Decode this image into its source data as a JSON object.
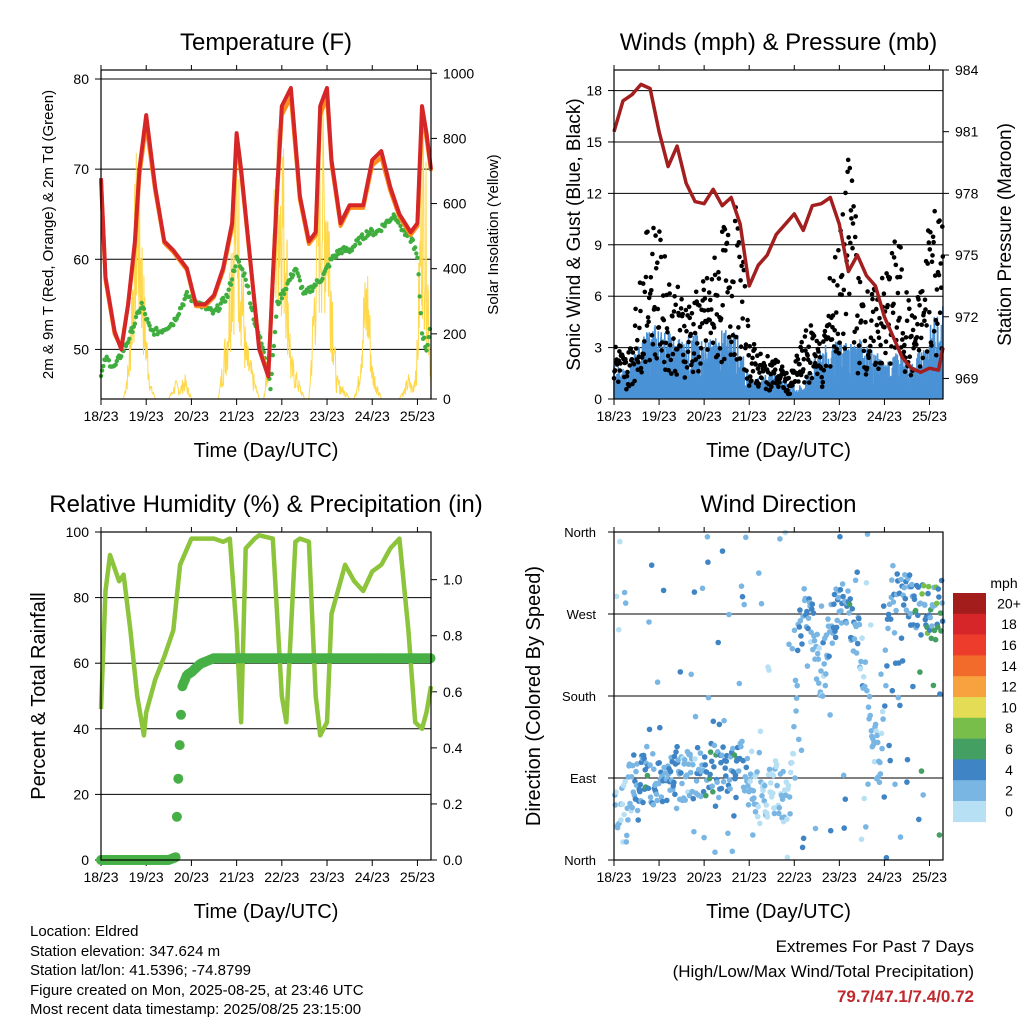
{
  "x_ticks": [
    "18/23",
    "19/23",
    "20/23",
    "21/23",
    "22/23",
    "23/23",
    "24/23",
    "25/23"
  ],
  "colors": {
    "temp_2m": "#d62728",
    "temp_9m": "#ff8c1a",
    "dewpoint": "#3fae3f",
    "solar": "#ffd84a",
    "pressure": "#a31f1f",
    "wind": "#4b92d6",
    "gust": "#000000",
    "rh": "#8cc43c",
    "precip": "#46b046",
    "value_highlight": "#c0282d"
  },
  "legend": {
    "title": "mph",
    "labels": [
      "20+",
      "18",
      "16",
      "14",
      "12",
      "10",
      "8",
      "6",
      "4",
      "2",
      "0"
    ],
    "colors": [
      "#a31d1d",
      "#d6262a",
      "#ee3c2c",
      "#f26b2a",
      "#f7a23e",
      "#e4dc55",
      "#78be4a",
      "#43a062",
      "#3f84c4",
      "#7ab6e4",
      "#b8e0f4"
    ]
  },
  "chart_data": [
    {
      "type": "line",
      "title": "Temperature (F)",
      "xlabel": "Time (Day/UTC)",
      "ylabel": "2m & 9m T (Red, Orange) & 2m Td (Green)",
      "y2label": "Solar Insolation (Yellow)",
      "x_tick_labels": [
        "18/23",
        "19/23",
        "20/23",
        "21/23",
        "22/23",
        "23/23",
        "24/23",
        "25/23"
      ],
      "ylim": [
        44.5,
        81
      ],
      "yticks": [
        50,
        60,
        70,
        80
      ],
      "y2lim": [
        0,
        1010
      ],
      "y2ticks": [
        0,
        200,
        400,
        600,
        800,
        1000
      ],
      "grid": "horizontal",
      "series": [
        {
          "name": "2m T",
          "x": [
            0,
            0.1,
            0.3,
            0.45,
            0.6,
            0.75,
            0.85,
            1.0,
            1.2,
            1.4,
            1.6,
            1.9,
            2.1,
            2.3,
            2.5,
            2.7,
            2.9,
            3.0,
            3.1,
            3.3,
            3.5,
            3.7,
            3.8,
            3.9,
            4.0,
            4.2,
            4.4,
            4.6,
            4.75,
            4.85,
            5.0,
            5.1,
            5.3,
            5.5,
            5.8,
            6.0,
            6.2,
            6.4,
            6.6,
            6.85,
            7.0,
            7.1,
            7.2,
            7.3
          ],
          "values": [
            69,
            58,
            52,
            50,
            55,
            62,
            70,
            76,
            68,
            62,
            61,
            59,
            55,
            55,
            56,
            59,
            64,
            74,
            70,
            60,
            50,
            47,
            58,
            68,
            77,
            79,
            67,
            62,
            63,
            77,
            79,
            71,
            64,
            66,
            66,
            71,
            72,
            68,
            65,
            63,
            64,
            77,
            74,
            70
          ]
        },
        {
          "name": "9m T",
          "x": [
            0,
            0.1,
            0.3,
            0.45,
            0.6,
            0.75,
            0.85,
            1.0,
            1.2,
            1.4,
            1.6,
            1.9,
            2.1,
            2.3,
            2.5,
            2.7,
            2.9,
            3.0,
            3.1,
            3.3,
            3.5,
            3.7,
            3.8,
            3.9,
            4.0,
            4.2,
            4.4,
            4.6,
            4.75,
            4.85,
            5.0,
            5.1,
            5.3,
            5.5,
            5.8,
            6.0,
            6.2,
            6.4,
            6.6,
            6.85,
            7.0,
            7.1,
            7.2,
            7.3
          ],
          "values": [
            68.7,
            57.7,
            51.7,
            50.2,
            55,
            61.5,
            69.3,
            75,
            67.6,
            61.8,
            60.8,
            58.8,
            54.8,
            54.8,
            55.8,
            58.7,
            63.5,
            73,
            69.5,
            59.8,
            50.2,
            47.3,
            57.7,
            67.5,
            76,
            78,
            66.6,
            61.7,
            62.7,
            76,
            78,
            70.6,
            63.7,
            65.7,
            65.7,
            70.4,
            71.3,
            67.6,
            64.7,
            62.7,
            63.7,
            76,
            73.4,
            69.8
          ]
        },
        {
          "name": "2m Td",
          "x": [
            0,
            0.1,
            0.3,
            0.6,
            0.9,
            1.1,
            1.3,
            1.6,
            1.9,
            2.2,
            2.5,
            2.8,
            3.0,
            3.2,
            3.4,
            3.6,
            3.75,
            3.9,
            4.1,
            4.3,
            4.5,
            4.7,
            4.9,
            5.1,
            5.3,
            5.5,
            5.7,
            5.9,
            6.1,
            6.3,
            6.5,
            6.7,
            6.9,
            7.0,
            7.1,
            7.2,
            7.3
          ],
          "values": [
            47,
            49,
            48,
            51,
            55,
            52,
            52,
            53,
            56,
            55,
            54,
            56,
            60,
            58,
            53,
            50,
            46,
            55,
            57,
            59,
            56,
            57,
            58,
            60,
            61,
            61,
            62,
            63,
            63,
            64,
            65,
            63,
            62,
            60,
            52,
            50,
            53
          ]
        },
        {
          "name": "Solar",
          "axis": "y2",
          "x": [
            0,
            0.3,
            0.5,
            0.62,
            0.7,
            0.8,
            0.9,
            0.95,
            1.0,
            1.1,
            1.2,
            1.5,
            1.65,
            1.75,
            1.85,
            2.0,
            2.4,
            2.6,
            2.8,
            2.9,
            3.0,
            3.1,
            3.2,
            3.5,
            3.6,
            3.7,
            3.8,
            3.9,
            4.0,
            4.1,
            4.2,
            4.5,
            4.6,
            4.7,
            4.8,
            4.9,
            5.0,
            5.1,
            5.2,
            5.5,
            5.6,
            5.7,
            5.8,
            5.9,
            6.0,
            6.1,
            6.2,
            6.5,
            6.6,
            6.7,
            6.8,
            6.9,
            7.0,
            7.1,
            7.2,
            7.3
          ],
          "values": [
            0,
            0,
            0,
            150,
            500,
            850,
            600,
            400,
            250,
            50,
            0,
            0,
            60,
            40,
            80,
            0,
            0,
            0,
            300,
            700,
            880,
            600,
            200,
            0,
            0,
            150,
            600,
            900,
            950,
            650,
            150,
            0,
            0,
            350,
            800,
            950,
            880,
            500,
            80,
            0,
            0,
            80,
            350,
            450,
            120,
            60,
            0,
            0,
            0,
            30,
            80,
            40,
            200,
            980,
            700,
            100
          ]
        }
      ]
    },
    {
      "type": "scatter",
      "title": "Winds (mph) & Pressure (mb)",
      "xlabel": "Time (Day/UTC)",
      "ylabel": "Sonic Wind & Gust (Blue, Black)",
      "y2label": "Station Pressure (Maroon)",
      "x_tick_labels": [
        "18/23",
        "19/23",
        "20/23",
        "21/23",
        "22/23",
        "23/23",
        "24/23",
        "25/23"
      ],
      "ylim": [
        0,
        19.2
      ],
      "yticks": [
        0,
        3,
        6,
        9,
        12,
        15,
        18
      ],
      "y2lim": [
        968,
        984
      ],
      "y2ticks": [
        969,
        972,
        975,
        978,
        981,
        984
      ],
      "grid": "horizontal",
      "series": [
        {
          "name": "Wind",
          "x": [
            0,
            0.3,
            0.6,
            0.9,
            1.2,
            1.5,
            1.8,
            2.1,
            2.4,
            2.7,
            2.85,
            3.0,
            3.3,
            3.6,
            3.9,
            4.2,
            4.5,
            4.8,
            5.1,
            5.4,
            5.7,
            6.0,
            6.3,
            6.6,
            6.9,
            7.2
          ],
          "values": [
            1.5,
            1.2,
            2.5,
            3.2,
            2.8,
            2.6,
            2.8,
            2.5,
            2.9,
            3.0,
            2.0,
            0.8,
            1.0,
            1.2,
            0.5,
            0.6,
            2.0,
            2.4,
            2.5,
            2.6,
            2.3,
            1.5,
            2.0,
            1.5,
            2.5,
            4.0
          ]
        },
        {
          "name": "Gust",
          "x": [
            0,
            0.3,
            0.6,
            0.8,
            1.0,
            1.2,
            1.5,
            1.8,
            2.1,
            2.4,
            2.7,
            2.85,
            3.0,
            3.3,
            3.6,
            3.9,
            4.2,
            4.5,
            4.6,
            4.8,
            5.1,
            5.3,
            5.4,
            5.7,
            6.0,
            6.3,
            6.6,
            6.9,
            7.0,
            7.2
          ],
          "values": [
            3,
            2,
            6,
            9,
            8,
            6,
            5,
            5,
            6,
            8,
            9,
            7,
            3,
            2,
            2,
            1,
            3,
            4,
            2,
            6,
            9,
            14,
            6,
            5,
            6,
            8,
            4,
            6,
            11,
            9
          ]
        },
        {
          "name": "Pressure",
          "axis": "y2",
          "x": [
            0,
            0.2,
            0.4,
            0.6,
            0.8,
            1.0,
            1.2,
            1.4,
            1.6,
            1.8,
            2.0,
            2.2,
            2.4,
            2.6,
            2.8,
            3.0,
            3.2,
            3.4,
            3.6,
            3.8,
            4.0,
            4.2,
            4.4,
            4.6,
            4.8,
            5.0,
            5.2,
            5.4,
            5.6,
            5.8,
            6.0,
            6.2,
            6.4,
            6.6,
            6.8,
            7.0,
            7.2,
            7.3
          ],
          "values": [
            981,
            982.5,
            982.8,
            983.3,
            983.1,
            981,
            979.3,
            980.3,
            978.5,
            977.6,
            977.5,
            978.2,
            977.4,
            977.8,
            976.5,
            973.5,
            974.5,
            975,
            976,
            976.5,
            977,
            976.2,
            977.4,
            977.5,
            977.8,
            976.5,
            974.2,
            975,
            974,
            973.5,
            972,
            971,
            970,
            969.5,
            969.3,
            969.5,
            969.4,
            970.5
          ]
        }
      ]
    },
    {
      "type": "line",
      "title": "Relative Humidity (%) & Precipitation (in)",
      "xlabel": "Time (Day/UTC)",
      "ylabel": "Percent & Total Rainfall",
      "x_tick_labels": [
        "18/23",
        "19/23",
        "20/23",
        "21/23",
        "22/23",
        "23/23",
        "24/23",
        "25/23"
      ],
      "ylim": [
        0,
        100
      ],
      "yticks": [
        0,
        20,
        40,
        60,
        80,
        100
      ],
      "y2lim": [
        0,
        1.17
      ],
      "y2ticks": [
        0.0,
        0.2,
        0.4,
        0.6,
        0.8,
        1.0
      ],
      "grid": "horizontal",
      "series": [
        {
          "name": "RH",
          "x": [
            0,
            0.1,
            0.2,
            0.4,
            0.5,
            0.65,
            0.8,
            0.95,
            1.0,
            1.2,
            1.4,
            1.6,
            1.75,
            2.0,
            2.3,
            2.5,
            2.7,
            2.85,
            3.0,
            3.1,
            3.2,
            3.4,
            3.5,
            3.8,
            4.0,
            4.1,
            4.3,
            4.4,
            4.6,
            4.75,
            4.85,
            5.0,
            5.1,
            5.4,
            5.6,
            5.8,
            6.0,
            6.2,
            6.4,
            6.6,
            6.8,
            6.95,
            7.1,
            7.2,
            7.3
          ],
          "values": [
            46,
            82,
            93,
            85,
            87,
            70,
            50,
            38,
            45,
            55,
            62,
            70,
            90,
            98,
            98,
            98,
            97,
            98,
            70,
            42,
            95,
            98,
            99,
            98,
            50,
            42,
            97,
            98,
            97,
            50,
            38,
            42,
            75,
            90,
            85,
            82,
            88,
            90,
            95,
            98,
            70,
            42,
            40,
            45,
            53
          ]
        },
        {
          "name": "Precip",
          "axis": "y2",
          "x": [
            0,
            0.3,
            0.6,
            0.9,
            1.2,
            1.5,
            1.65,
            1.7,
            1.75,
            1.8,
            1.9,
            2.0,
            2.2,
            2.5,
            2.8,
            3.1,
            3.4,
            3.7,
            4.0,
            4.3,
            4.6,
            4.9,
            5.2,
            5.5,
            5.8,
            6.1,
            6.4,
            6.7,
            7.0,
            7.3
          ],
          "values": [
            0,
            0,
            0,
            0,
            0,
            0,
            0.01,
            0.25,
            0.45,
            0.62,
            0.66,
            0.67,
            0.7,
            0.72,
            0.72,
            0.72,
            0.72,
            0.72,
            0.72,
            0.72,
            0.72,
            0.72,
            0.72,
            0.72,
            0.72,
            0.72,
            0.72,
            0.72,
            0.72,
            0.72
          ]
        }
      ]
    },
    {
      "type": "scatter",
      "title": "Wind Direction",
      "xlabel": "Time (Day/UTC)",
      "ylabel": "Direction (Colored By Speed)",
      "x_tick_labels": [
        "18/23",
        "19/23",
        "20/23",
        "21/23",
        "22/23",
        "23/23",
        "24/23",
        "25/23"
      ],
      "yticks": [
        "North",
        "East",
        "South",
        "West",
        "North"
      ],
      "ylim": [
        0,
        360
      ],
      "grid": "horizontal",
      "series": [
        {
          "name": "Direction",
          "x": [
            0.2,
            0.5,
            0.8,
            1.0,
            1.3,
            1.6,
            1.9,
            2.1,
            2.4,
            2.7,
            3.0,
            3.3,
            3.6,
            3.9,
            4.1,
            4.3,
            4.6,
            4.9,
            5.1,
            5.4,
            5.6,
            5.9,
            6.1,
            6.4,
            6.7,
            7.0,
            7.2
          ],
          "values": [
            60,
            95,
            90,
            85,
            100,
            90,
            95,
            100,
            95,
            110,
            100,
            60,
            80,
            60,
            250,
            280,
            200,
            270,
            280,
            250,
            200,
            90,
            280,
            300,
            280,
            270,
            280
          ],
          "speeds": [
            1,
            3,
            4,
            3,
            3,
            2,
            3,
            4,
            3,
            4,
            2,
            1,
            1,
            1,
            3,
            3,
            2,
            3,
            4,
            3,
            2,
            2,
            3,
            3,
            4,
            6,
            5
          ]
        }
      ]
    }
  ],
  "footer": {
    "location": "Location: Eldred",
    "elevation": "Station elevation: 347.624 m",
    "latlon": "Station lat/lon: 41.5396; -74.8799",
    "created": "Figure created on Mon, 2025-08-25, at 23:46 UTC",
    "recent": "Most recent data timestamp: 2025/08/25 23:15:00"
  },
  "extremes": {
    "title": "Extremes For Past 7 Days",
    "subtitle": "(High/Low/Max Wind/Total Precipitation)",
    "values": "79.7/47.1/7.4/0.72"
  }
}
